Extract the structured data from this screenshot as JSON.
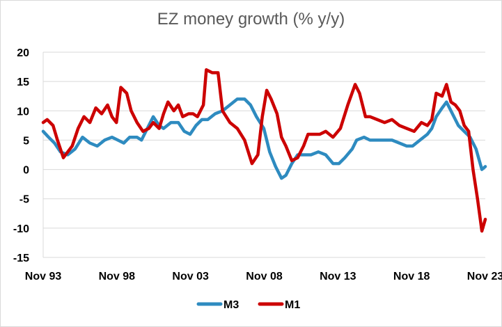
{
  "chart_data": {
    "type": "line",
    "title": "EZ money growth (% y/y)",
    "xlabel": "",
    "ylabel": "",
    "x_start": "Nov 93",
    "x_end": "Nov 23",
    "x_ticks": [
      "Nov 93",
      "Nov 98",
      "Nov 03",
      "Nov 08",
      "Nov 13",
      "Nov 18",
      "Nov 23"
    ],
    "ylim": [
      -15,
      20
    ],
    "y_ticks": [
      20,
      15,
      10,
      5,
      0,
      -5,
      -10,
      -15
    ],
    "grid": "horizontal",
    "legend": "bottom",
    "series": [
      {
        "name": "M3",
        "color": "#2e8bc0",
        "x": [
          1993.83,
          1994.2,
          1994.6,
          1995.0,
          1995.5,
          1996.0,
          1996.5,
          1997.0,
          1997.5,
          1998.0,
          1998.5,
          1998.9,
          1999.3,
          1999.7,
          2000.2,
          2000.5,
          2000.9,
          2001.3,
          2001.7,
          2002.0,
          2002.5,
          2003.0,
          2003.4,
          2003.8,
          2004.2,
          2004.6,
          2005.0,
          2005.5,
          2006.0,
          2006.5,
          2007.0,
          2007.5,
          2007.9,
          2008.3,
          2008.8,
          2009.2,
          2009.6,
          2010.0,
          2010.3,
          2010.7,
          2011.1,
          2011.6,
          2012.0,
          2012.5,
          2013.0,
          2013.5,
          2013.9,
          2014.3,
          2014.8,
          2015.1,
          2015.6,
          2016.0,
          2016.5,
          2017.0,
          2017.5,
          2018.0,
          2018.5,
          2018.9,
          2019.4,
          2019.9,
          2020.2,
          2020.5,
          2020.9,
          2021.2,
          2021.6,
          2022.0,
          2022.4,
          2022.8,
          2023.2,
          2023.6,
          2023.83
        ],
        "values": [
          6.5,
          5.5,
          4.5,
          3.0,
          2.5,
          3.5,
          5.5,
          4.5,
          4.0,
          5.0,
          5.5,
          5.0,
          4.5,
          5.5,
          5.5,
          5.0,
          7.0,
          9.0,
          7.5,
          7.0,
          8.0,
          8.0,
          6.5,
          6.0,
          7.5,
          8.5,
          8.5,
          9.5,
          10.0,
          11.0,
          12.0,
          12.0,
          11.0,
          9.0,
          7.0,
          3.0,
          0.5,
          -1.5,
          -1.0,
          1.0,
          2.5,
          2.5,
          2.5,
          3.0,
          2.5,
          1.0,
          1.0,
          2.0,
          3.5,
          5.0,
          5.5,
          5.0,
          5.0,
          5.0,
          5.0,
          4.5,
          4.0,
          4.0,
          5.0,
          6.0,
          7.0,
          9.0,
          10.5,
          11.5,
          9.5,
          7.5,
          6.5,
          5.5,
          3.5,
          0.0,
          0.5
        ]
      },
      {
        "name": "M1",
        "color": "#cc0000",
        "x": [
          1993.83,
          1994.1,
          1994.5,
          1994.8,
          1995.2,
          1995.5,
          1995.8,
          1996.2,
          1996.6,
          1997.0,
          1997.4,
          1997.8,
          1998.2,
          1998.5,
          1998.8,
          1999.1,
          1999.5,
          1999.8,
          2000.2,
          2000.6,
          2001.0,
          2001.3,
          2001.7,
          2002.0,
          2002.3,
          2002.7,
          2003.0,
          2003.3,
          2003.7,
          2004.0,
          2004.3,
          2004.7,
          2004.9,
          2005.3,
          2005.7,
          2006.0,
          2006.5,
          2007.0,
          2007.5,
          2008.0,
          2008.4,
          2008.7,
          2009.0,
          2009.3,
          2009.7,
          2010.0,
          2010.3,
          2010.7,
          2011.1,
          2011.5,
          2011.8,
          2012.2,
          2012.6,
          2013.0,
          2013.5,
          2014.0,
          2014.5,
          2015.0,
          2015.3,
          2015.7,
          2016.0,
          2016.5,
          2017.0,
          2017.5,
          2018.0,
          2018.5,
          2019.0,
          2019.5,
          2019.9,
          2020.2,
          2020.5,
          2020.9,
          2021.2,
          2021.5,
          2021.8,
          2022.1,
          2022.4,
          2022.7,
          2023.0,
          2023.3,
          2023.6,
          2023.83
        ],
        "values": [
          8.0,
          8.5,
          7.5,
          5.0,
          2.0,
          3.0,
          4.0,
          7.0,
          9.0,
          8.0,
          10.5,
          9.5,
          11.0,
          9.0,
          8.0,
          14.0,
          13.0,
          10.0,
          8.0,
          6.5,
          7.0,
          8.0,
          7.0,
          9.5,
          11.5,
          10.0,
          11.0,
          9.0,
          9.5,
          9.5,
          9.0,
          11.0,
          17.0,
          16.5,
          16.5,
          10.0,
          8.0,
          7.0,
          5.0,
          1.0,
          2.5,
          9.0,
          13.5,
          12.0,
          9.5,
          5.5,
          4.0,
          1.5,
          2.0,
          4.0,
          6.0,
          6.0,
          6.0,
          6.5,
          5.5,
          7.0,
          11.0,
          14.5,
          13.0,
          9.0,
          9.0,
          8.5,
          8.0,
          8.5,
          7.5,
          7.0,
          6.5,
          8.0,
          7.5,
          8.5,
          13.0,
          12.5,
          14.5,
          11.5,
          11.0,
          10.0,
          7.5,
          6.5,
          0.0,
          -5.0,
          -10.5,
          -8.5
        ]
      }
    ]
  }
}
